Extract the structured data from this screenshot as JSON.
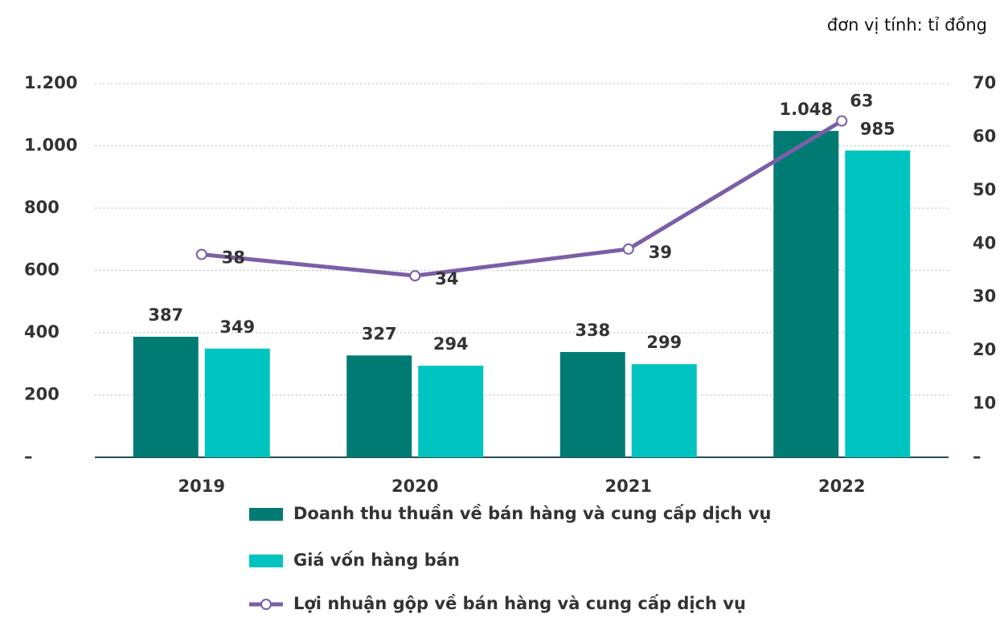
{
  "chart_data": {
    "type": "bar",
    "unit_note": "đơn vị tính: tỉ đồng",
    "categories": [
      "2019",
      "2020",
      "2021",
      "2022"
    ],
    "series": [
      {
        "name": "Doanh thu thuần về bán hàng và cung cấp dịch vụ",
        "type": "bar",
        "color": "#007b73",
        "values": [
          387,
          327,
          338,
          1048
        ],
        "value_labels": [
          "387",
          "327",
          "338",
          "1.048"
        ]
      },
      {
        "name": "Giá vốn hàng bán",
        "type": "bar",
        "color": "#00c4c0",
        "values": [
          349,
          294,
          299,
          985
        ]
      },
      {
        "name": "Lợi nhuận gộp về bán hàng và cung cấp dịch vụ",
        "type": "line",
        "axis": "y2",
        "color": "#7b5ea7",
        "values": [
          38,
          34,
          39,
          63
        ]
      }
    ],
    "ylim": [
      0,
      1200
    ],
    "yticks": [
      {
        "value": 0,
        "label": "–"
      },
      200,
      400,
      600,
      800,
      {
        "value": 1000,
        "label": "1.000"
      },
      {
        "value": 1200,
        "label": "1.200"
      }
    ],
    "y2lim": [
      0,
      70
    ],
    "y2ticks": [
      {
        "value": 0,
        "label": "–"
      },
      10,
      20,
      30,
      40,
      50,
      60,
      70
    ],
    "grid": true,
    "legend": "bottom"
  }
}
